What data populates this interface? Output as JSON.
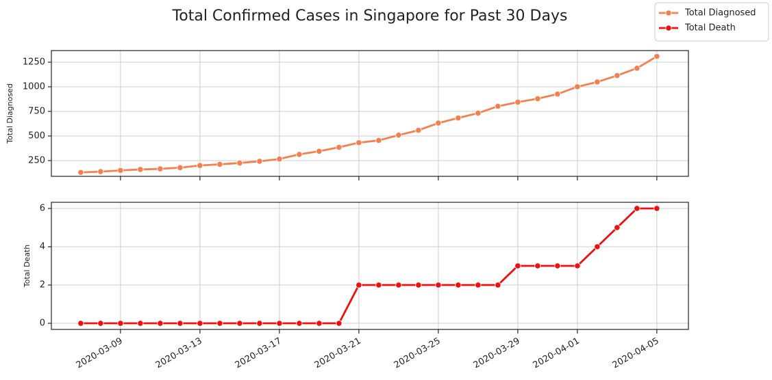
{
  "title": "Total Confirmed Cases in Singapore for Past 30 Days",
  "legend": "upper right",
  "chart_data": [
    {
      "type": "line",
      "ylabel": "Total Diagnosed",
      "x": [
        "2020-03-07",
        "2020-03-08",
        "2020-03-09",
        "2020-03-10",
        "2020-03-11",
        "2020-03-12",
        "2020-03-13",
        "2020-03-14",
        "2020-03-15",
        "2020-03-16",
        "2020-03-17",
        "2020-03-18",
        "2020-03-19",
        "2020-03-20",
        "2020-03-21",
        "2020-03-22",
        "2020-03-23",
        "2020-03-24",
        "2020-03-25",
        "2020-03-26",
        "2020-03-27",
        "2020-03-28",
        "2020-03-29",
        "2020-03-30",
        "2020-03-31",
        "2020-04-01",
        "2020-04-02",
        "2020-04-03",
        "2020-04-04",
        "2020-04-05"
      ],
      "series": [
        {
          "name": "Total Diagnosed",
          "color": "#f5804f",
          "values": [
            130,
            138,
            150,
            160,
            166,
            178,
            200,
            212,
            226,
            243,
            266,
            313,
            345,
            385,
            432,
            455,
            509,
            558,
            631,
            683,
            732,
            802,
            844,
            879,
            926,
            1000,
            1049,
            1114,
            1189,
            1309
          ]
        }
      ],
      "xlim": [
        "2020-03-05T12:30Z",
        "2020-04-06T14:10Z"
      ],
      "ylim": [
        90,
        1368
      ],
      "yticks": [
        250,
        500,
        750,
        1000,
        1250
      ],
      "grid": true
    },
    {
      "type": "line",
      "ylabel": "Total Death",
      "x": [
        "2020-03-07",
        "2020-03-08",
        "2020-03-09",
        "2020-03-10",
        "2020-03-11",
        "2020-03-12",
        "2020-03-13",
        "2020-03-14",
        "2020-03-15",
        "2020-03-16",
        "2020-03-17",
        "2020-03-18",
        "2020-03-19",
        "2020-03-20",
        "2020-03-21",
        "2020-03-22",
        "2020-03-23",
        "2020-03-24",
        "2020-03-25",
        "2020-03-26",
        "2020-03-27",
        "2020-03-28",
        "2020-03-29",
        "2020-03-30",
        "2020-03-31",
        "2020-04-01",
        "2020-04-02",
        "2020-04-03",
        "2020-04-04",
        "2020-04-05"
      ],
      "series": [
        {
          "name": "Total Death",
          "color": "#ee0f0f",
          "values": [
            0,
            0,
            0,
            0,
            0,
            0,
            0,
            0,
            0,
            0,
            0,
            0,
            0,
            0,
            2,
            2,
            2,
            2,
            2,
            2,
            2,
            2,
            3,
            3,
            3,
            3,
            4,
            5,
            6,
            6
          ]
        }
      ],
      "xlim": [
        "2020-03-05T12:30Z",
        "2020-04-06T14:10Z"
      ],
      "xticks": [
        "2020-03-09",
        "2020-03-13",
        "2020-03-17",
        "2020-03-21",
        "2020-03-25",
        "2020-03-29",
        "2020-04-01",
        "2020-04-05"
      ],
      "ylim": [
        -0.32,
        6.32
      ],
      "yticks": [
        0,
        2,
        4,
        6
      ],
      "grid": true
    }
  ]
}
